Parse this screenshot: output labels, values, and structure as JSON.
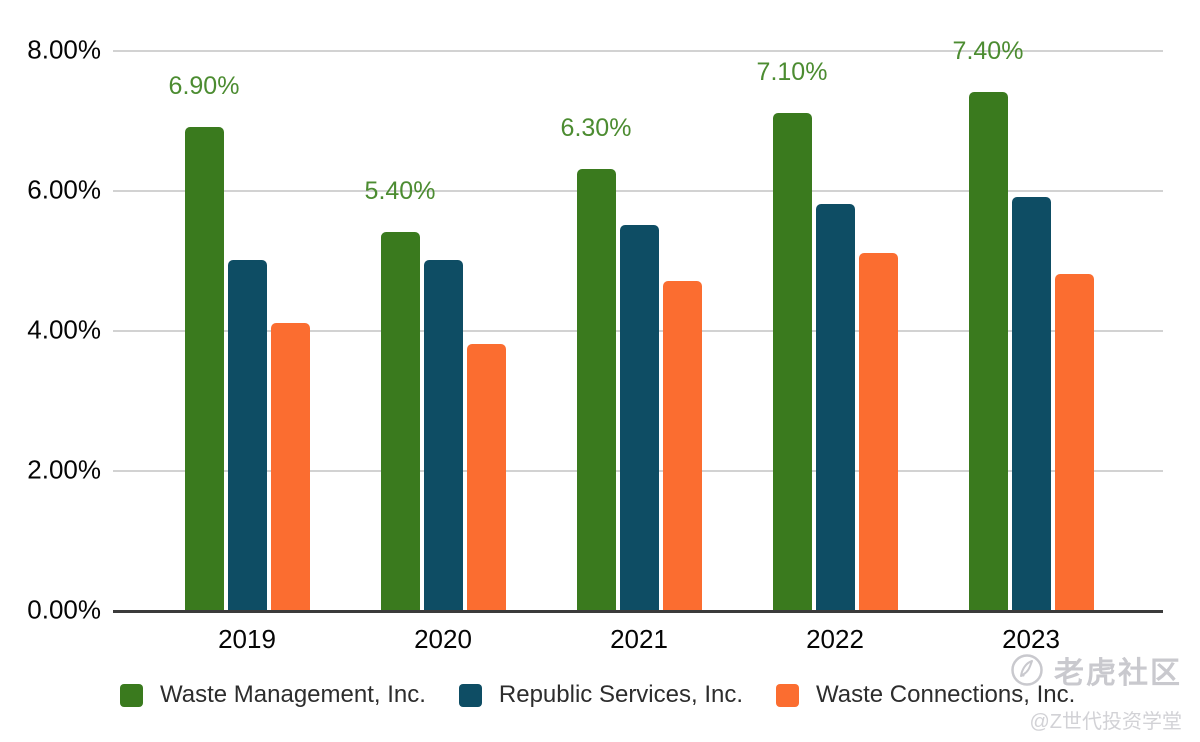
{
  "chart_data": {
    "type": "bar",
    "title": "",
    "categories": [
      "2019",
      "2020",
      "2021",
      "2022",
      "2023"
    ],
    "series": [
      {
        "name": "Waste Management, Inc.",
        "color": "#3a7a1e",
        "values": [
          6.9,
          5.4,
          6.3,
          7.1,
          7.4
        ],
        "data_labels": [
          "6.90%",
          "5.40%",
          "6.30%",
          "7.10%",
          "7.40%"
        ],
        "data_label_color": "#4c8c31"
      },
      {
        "name": "Republic Services, Inc.",
        "color": "#0e4d64",
        "values": [
          5.0,
          5.0,
          5.5,
          5.8,
          5.9
        ]
      },
      {
        "name": "Waste Connections, Inc.",
        "color": "#fb6d30",
        "values": [
          4.1,
          3.8,
          4.7,
          5.1,
          4.8
        ]
      }
    ],
    "xlabel": "",
    "ylabel": "",
    "ylim": [
      0,
      8
    ],
    "ytick_labels": [
      "8.00%",
      "6.00%",
      "4.00%",
      "2.00%",
      "0.00%"
    ],
    "grid": true,
    "gridline_color": "#d2d2d2",
    "axis_line_color": "#3b3b3b",
    "legend_position": "bottom"
  },
  "watermark": {
    "brand_text": "老虎社区",
    "handle_text": "@Z世代投资学堂",
    "logo_icon": "tiger-logo-icon",
    "color": "#c9c9ce"
  }
}
